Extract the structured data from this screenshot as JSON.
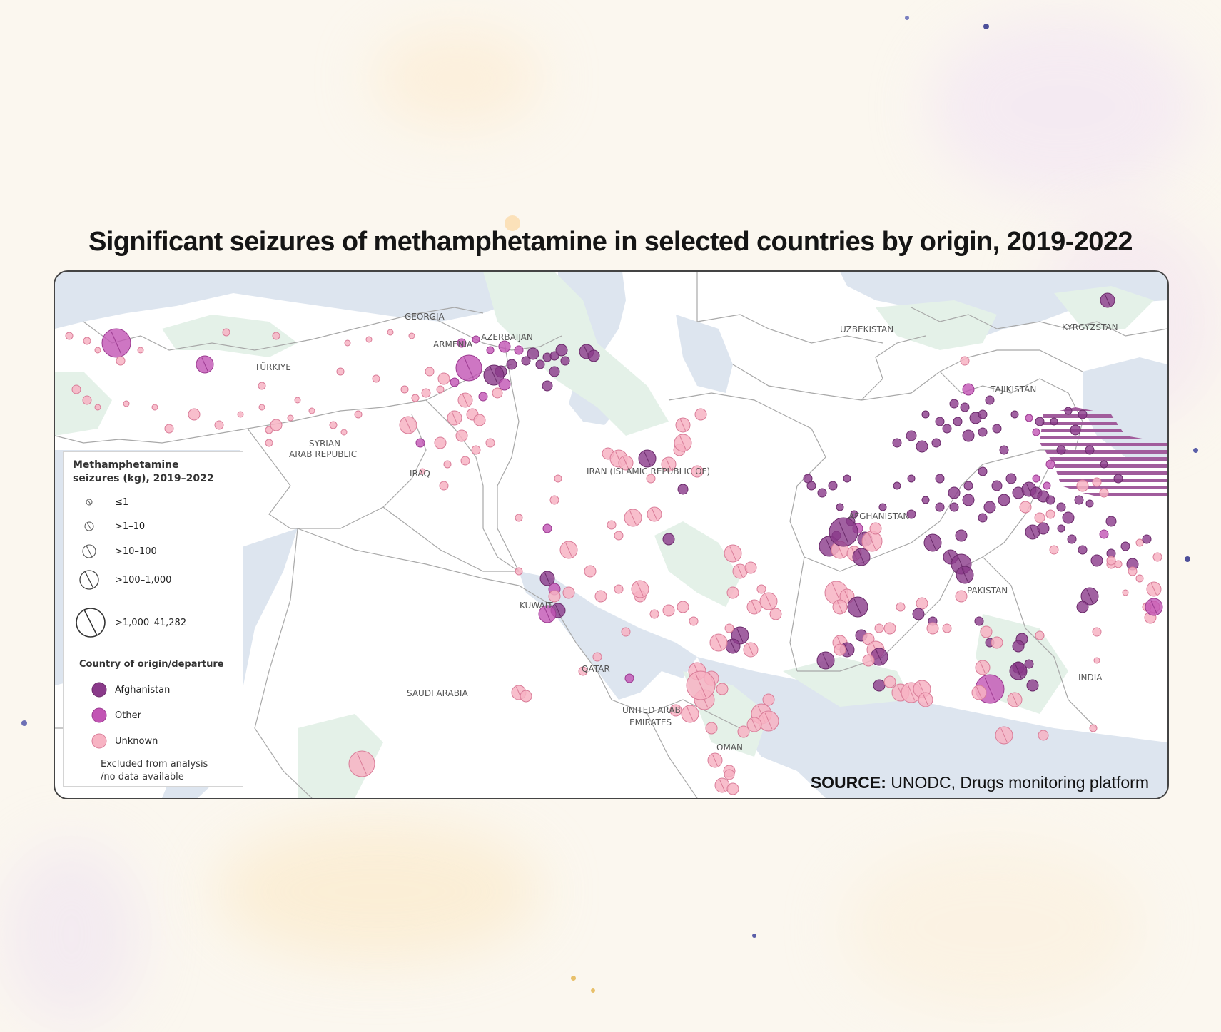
{
  "title": "Significant seizures of methamphetamine in selected countries by origin, 2019-2022",
  "colors": {
    "afghanistan": "#8a3a8a",
    "other": "#c254b4",
    "unknown": "#f7b3c3",
    "water": "#dde5ef",
    "green": "#e4f1e8",
    "border": "#a8a8a8"
  },
  "countries": {
    "georgia": "GEORGIA",
    "armenia": "ARMENIA",
    "azerbaijan": "AZERBAIJAN",
    "turkiye": "TÜRKIYE",
    "syria_line1": "SYRIAN",
    "syria_line2": "ARAB REPUBLIC",
    "iraq": "IRAQ",
    "iran": "IRAN (ISLAMIC REPUBLIC OF)",
    "kuwait": "KUWAIT",
    "qatar": "QATAR",
    "saudi": "SAUDI ARABIA",
    "uae_line1": "UNITED ARAB",
    "uae_line2": "EMIRATES",
    "oman": "OMAN",
    "uzbekistan": "UZBEKISTAN",
    "kyrgyzstan": "KYRGYZSTAN",
    "tajikistan": "TAJIKISTAN",
    "afghanistan": "AFGHANISTAN",
    "pakistan": "PAKISTAN",
    "india": "INDIA"
  },
  "legend": {
    "title_line1": "Methamphetamine",
    "title_line2": "seizures (kg), 2019–2022",
    "sizes": [
      {
        "label": "≤1"
      },
      {
        "label": ">1–10"
      },
      {
        "label": ">10–100"
      },
      {
        "label": ">100–1,000"
      },
      {
        "label": ">1,000–41,282"
      }
    ],
    "origin_title": "Country of origin/departure",
    "origins": [
      {
        "label": "Afghanistan",
        "color": "#8a3a8a"
      },
      {
        "label": "Other",
        "color": "#c254b4"
      },
      {
        "label": "Unknown",
        "color": "#f7b3c3"
      }
    ],
    "excluded_line1": "Excluded from analysis",
    "excluded_line2": "/no data available"
  },
  "source": {
    "label": "SOURCE:",
    "text": "UNODC, Drugs monitoring platform"
  }
}
